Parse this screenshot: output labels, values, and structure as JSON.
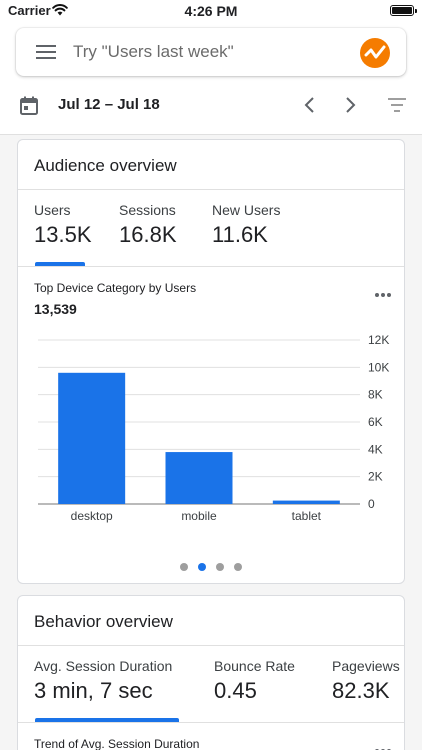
{
  "status_bar": {
    "carrier": "Carrier",
    "time": "4:26 PM"
  },
  "search": {
    "placeholder": "Try \"Users last week\""
  },
  "date_range": "Jul 12 – Jul 18",
  "audience": {
    "title": "Audience overview",
    "metrics": [
      {
        "label": "Users",
        "value": "13.5K"
      },
      {
        "label": "Sessions",
        "value": "16.8K"
      },
      {
        "label": "New Users",
        "value": "11.6K"
      }
    ],
    "chart_title": "Top Device Category by Users",
    "chart_total": "13,539"
  },
  "chart_data": {
    "type": "bar",
    "categories": [
      "desktop",
      "mobile",
      "tablet"
    ],
    "values": [
      9600,
      3800,
      250
    ],
    "ylim": [
      0,
      12000
    ],
    "yticks": [
      0,
      2000,
      4000,
      6000,
      8000,
      10000,
      12000
    ],
    "ytick_labels": [
      "0",
      "2K",
      "4K",
      "6K",
      "8K",
      "10K",
      "12K"
    ],
    "grid": true,
    "color": "#1a73e8"
  },
  "pagination": {
    "count": 4,
    "active": 1
  },
  "behavior": {
    "title": "Behavior overview",
    "metrics": [
      {
        "label": "Avg. Session Duration",
        "value": "3 min, 7 sec"
      },
      {
        "label": "Bounce Rate",
        "value": "0.45"
      },
      {
        "label": "Pageviews",
        "value": "82.3K"
      }
    ],
    "chart_title": "Trend of Avg. Session Duration"
  },
  "colors": {
    "accent": "#1a73e8",
    "logo_orange": "#f57c00"
  }
}
